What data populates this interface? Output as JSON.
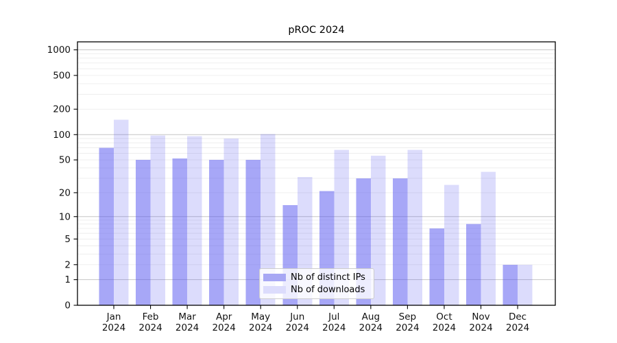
{
  "chart_data": {
    "type": "bar",
    "title": "pROC 2024",
    "categories": [
      "Jan",
      "Feb",
      "Mar",
      "Apr",
      "May",
      "Jun",
      "Jul",
      "Aug",
      "Sep",
      "Oct",
      "Nov",
      "Dec"
    ],
    "x_axis": {
      "year_suffix": "2024"
    },
    "y_axis": {
      "scale": "log1p",
      "ticks": [
        0,
        1,
        2,
        5,
        10,
        20,
        50,
        100,
        200,
        500,
        1000
      ],
      "major_gridlines": [
        1,
        10,
        100,
        1000
      ],
      "ylim": [
        0,
        1250
      ],
      "grid": true
    },
    "series": [
      {
        "name": "Nb of distinct IPs",
        "base_color": "#5050f0",
        "fill_opacity": 0.5,
        "swatch_color": "#a7a7f4",
        "values": [
          70,
          50,
          52,
          50,
          50,
          14,
          21,
          30,
          30,
          7,
          8,
          2
        ]
      },
      {
        "name": "Nb of downloads",
        "base_color": "#5050f0",
        "fill_opacity": 0.2,
        "swatch_color": "#dcdcfc",
        "values": [
          150,
          98,
          96,
          90,
          101,
          31,
          66,
          56,
          66,
          25,
          36,
          2
        ]
      }
    ],
    "legend": {
      "position": "inside-bottom-center"
    }
  },
  "colors": {
    "background": "#ffffff",
    "axis": "#000000",
    "grid_major": "#c6c6c6",
    "grid_minor": "#ececec",
    "legend_border": "#cccccc"
  }
}
